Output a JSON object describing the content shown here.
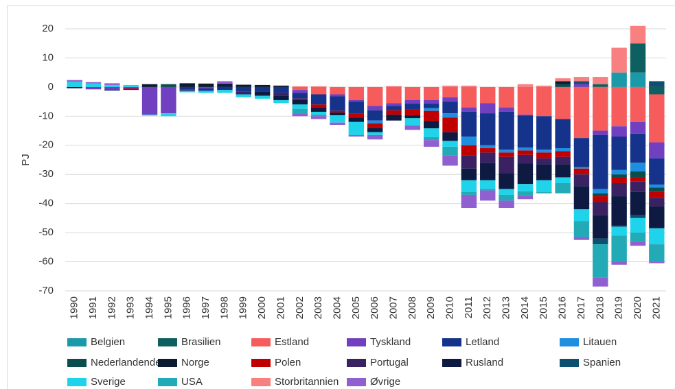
{
  "chart_data": {
    "type": "stacked_bar",
    "y_label": "PJ",
    "categories": [
      "1990",
      "1991",
      "1992",
      "1993",
      "1994",
      "1995",
      "1996",
      "1997",
      "1998",
      "1999",
      "2000",
      "2001",
      "2002",
      "2003",
      "2004",
      "2005",
      "2006",
      "2007",
      "2008",
      "2009",
      "2010",
      "2011",
      "2012",
      "2013",
      "2014",
      "2015",
      "2016",
      "2017",
      "2018",
      "2019",
      "2020",
      "2021"
    ],
    "ylim": [
      -70,
      22
    ],
    "yticks": [
      20,
      10,
      0,
      -10,
      -20,
      -30,
      -40,
      -50,
      -60,
      -70
    ],
    "grid": true,
    "legend": "bottom",
    "series": [
      {
        "name": "Belgien",
        "color": "#1a9aa8",
        "values": [
          0,
          0,
          0,
          0,
          0,
          0,
          0,
          0,
          0,
          0,
          0,
          0,
          0,
          0,
          0,
          0,
          0,
          0,
          0,
          0,
          0,
          0,
          0,
          0,
          0,
          0,
          0,
          0,
          0,
          5,
          5,
          0
        ]
      },
      {
        "name": "Brasilien",
        "color": "#0e5f5f",
        "values": [
          0,
          0,
          0,
          0,
          0,
          0,
          0,
          0,
          0,
          0,
          0,
          0,
          0,
          0,
          0,
          0,
          0,
          0,
          0,
          0,
          0,
          0,
          0,
          0,
          0,
          0,
          0,
          0,
          1,
          0,
          10,
          -2.5
        ]
      },
      {
        "name": "Estland",
        "color": "#f65c5c",
        "values": [
          0,
          0,
          0,
          0,
          0,
          0,
          0,
          0,
          0,
          0,
          0,
          0,
          -1,
          -2.5,
          -2.5,
          -4.5,
          -6.5,
          -5.5,
          -4.5,
          -4.5,
          -3.5,
          -7,
          -5.5,
          -7,
          -9.5,
          -10,
          -11,
          -17.5,
          -15,
          -13.5,
          -12,
          -16.5
        ]
      },
      {
        "name": "Tyskland",
        "color": "#7040c0",
        "values": [
          0,
          -0.8,
          -0.8,
          -0.5,
          -9.5,
          -9,
          0,
          -0.5,
          0,
          0,
          0,
          0,
          -1,
          0,
          -0.7,
          -0.5,
          -1.5,
          -1,
          -1.2,
          -1.2,
          -1.5,
          -1.5,
          -3.5,
          -1.5,
          -0.3,
          0,
          0,
          1,
          -1.5,
          -3.5,
          -4,
          -5.5
        ]
      },
      {
        "name": "Letland",
        "color": "#16338c",
        "values": [
          0,
          0,
          -0.4,
          0,
          0,
          0,
          -0.8,
          -0.8,
          -1,
          -1.5,
          -1.5,
          -2,
          -2,
          -3.5,
          -5,
          -4,
          -3.5,
          -1.5,
          -2,
          -1.5,
          -4,
          -8.5,
          -11,
          -13,
          -11,
          -11.5,
          -10,
          -10,
          -18.5,
          -11.5,
          -10,
          -9
        ]
      },
      {
        "name": "Litauen",
        "color": "#1e8ee0",
        "values": [
          0,
          0,
          0,
          0,
          0,
          0,
          0,
          0,
          0,
          0,
          0,
          0,
          0,
          0,
          0,
          0,
          -1,
          0,
          0,
          -1,
          -1.5,
          -3,
          -1,
          -1,
          -1,
          -1,
          -1,
          -0.5,
          -1.5,
          -1.5,
          -3,
          -1
        ]
      },
      {
        "name": "Nederlandende",
        "color": "#0b4c4c",
        "values": [
          0,
          0,
          0,
          0,
          0,
          1,
          0,
          0,
          0,
          0,
          0,
          0,
          0,
          0,
          0,
          0,
          0,
          0,
          0,
          0,
          0,
          0,
          0,
          0,
          0,
          0,
          1,
          0,
          -1,
          -1,
          -2,
          -1.5
        ]
      },
      {
        "name": "Norge",
        "color": "#0c1c30",
        "values": [
          0,
          0,
          0,
          0,
          1,
          0,
          1.3,
          1.2,
          0,
          0.8,
          0.7,
          0.5,
          0,
          0,
          0,
          0,
          0,
          0,
          0,
          0,
          0,
          0,
          0,
          0,
          0,
          0,
          1,
          0,
          0,
          0,
          0,
          0
        ]
      },
      {
        "name": "Polen",
        "color": "#c00000",
        "values": [
          0,
          0,
          0,
          -0.5,
          0,
          0,
          0,
          0,
          0,
          0,
          0,
          0,
          -0.5,
          -1,
          -0.5,
          -1.5,
          -1.5,
          -1.5,
          -2,
          -3.5,
          -5,
          -3.5,
          -1.5,
          -1.5,
          -1.5,
          -2,
          -2,
          -2,
          -2,
          -2,
          -1.5,
          -2
        ]
      },
      {
        "name": "Portugal",
        "color": "#3a2262",
        "values": [
          0,
          0,
          0,
          0,
          0,
          0,
          -0.5,
          0,
          0,
          -1,
          0,
          -1,
          0,
          0,
          0,
          0,
          0,
          0,
          0,
          0,
          0,
          -4.5,
          -3.5,
          -5.5,
          -3,
          -2,
          -2.5,
          -4,
          -4.5,
          -4.5,
          -3.5,
          -3
        ]
      },
      {
        "name": "Rusland",
        "color": "#0e1a42",
        "values": [
          -0.4,
          0,
          0,
          0,
          0,
          0,
          0,
          0,
          1.2,
          0,
          -1.5,
          -1.5,
          -1.5,
          -1.5,
          -1,
          -1.5,
          -1.5,
          -2,
          -1,
          -2.5,
          -3,
          -4,
          -6,
          -5.5,
          -7,
          -5.5,
          -4.5,
          -8,
          -8,
          -10,
          -8,
          -7.5
        ]
      },
      {
        "name": "Spanien",
        "color": "#0d5070",
        "values": [
          0,
          0,
          0,
          0,
          0,
          0,
          0,
          0,
          0,
          0,
          0,
          0,
          0,
          0,
          0,
          0,
          0,
          0,
          0,
          0,
          0,
          0,
          0,
          0,
          0,
          0,
          0,
          1,
          -2,
          -0.5,
          -1,
          2
        ]
      },
      {
        "name": "Sverige",
        "color": "#1ed3ea",
        "values": [
          1.8,
          1.2,
          0.7,
          0.7,
          -0.3,
          -1,
          -0.5,
          -0.7,
          -1,
          -1,
          -1,
          -1,
          -1.5,
          -1,
          -2.5,
          -4.5,
          -1,
          0,
          -2.5,
          -3,
          -2,
          -4,
          -3,
          -2,
          -2.5,
          -4,
          -2,
          -4,
          0,
          -3,
          -5,
          -5.5
        ]
      },
      {
        "name": "USA",
        "color": "#22aab6",
        "values": [
          0,
          0,
          0,
          0,
          0,
          0,
          0,
          0,
          0,
          0,
          0,
          0,
          -1.5,
          -0.5,
          0,
          0,
          0,
          0,
          0,
          -1,
          -3,
          -1,
          -0.5,
          -2,
          -1.5,
          -0.5,
          -3.5,
          -5.5,
          -11.5,
          -9,
          -3,
          -6
        ]
      },
      {
        "name": "Storbritannien",
        "color": "#f98080",
        "values": [
          0,
          0,
          0,
          0,
          0,
          0,
          0,
          0,
          0,
          0,
          0,
          0,
          0.3,
          0.3,
          0,
          0,
          0,
          0.4,
          0,
          0,
          0.5,
          0.5,
          0,
          0,
          1,
          0.5,
          1,
          1.5,
          2.5,
          8.5,
          6,
          0
        ]
      },
      {
        "name": "Øvrige",
        "color": "#9060d0",
        "values": [
          0.6,
          0.5,
          0.6,
          0,
          0,
          0,
          0,
          0,
          0.8,
          0,
          0,
          0,
          -1,
          -1,
          -0.8,
          -0.5,
          -1.5,
          0,
          -1.5,
          -2.3,
          -3.5,
          -4.5,
          -3.5,
          -2.5,
          -1.2,
          0,
          0,
          -1,
          -3,
          -1,
          -1.5,
          -0.5
        ]
      }
    ]
  }
}
